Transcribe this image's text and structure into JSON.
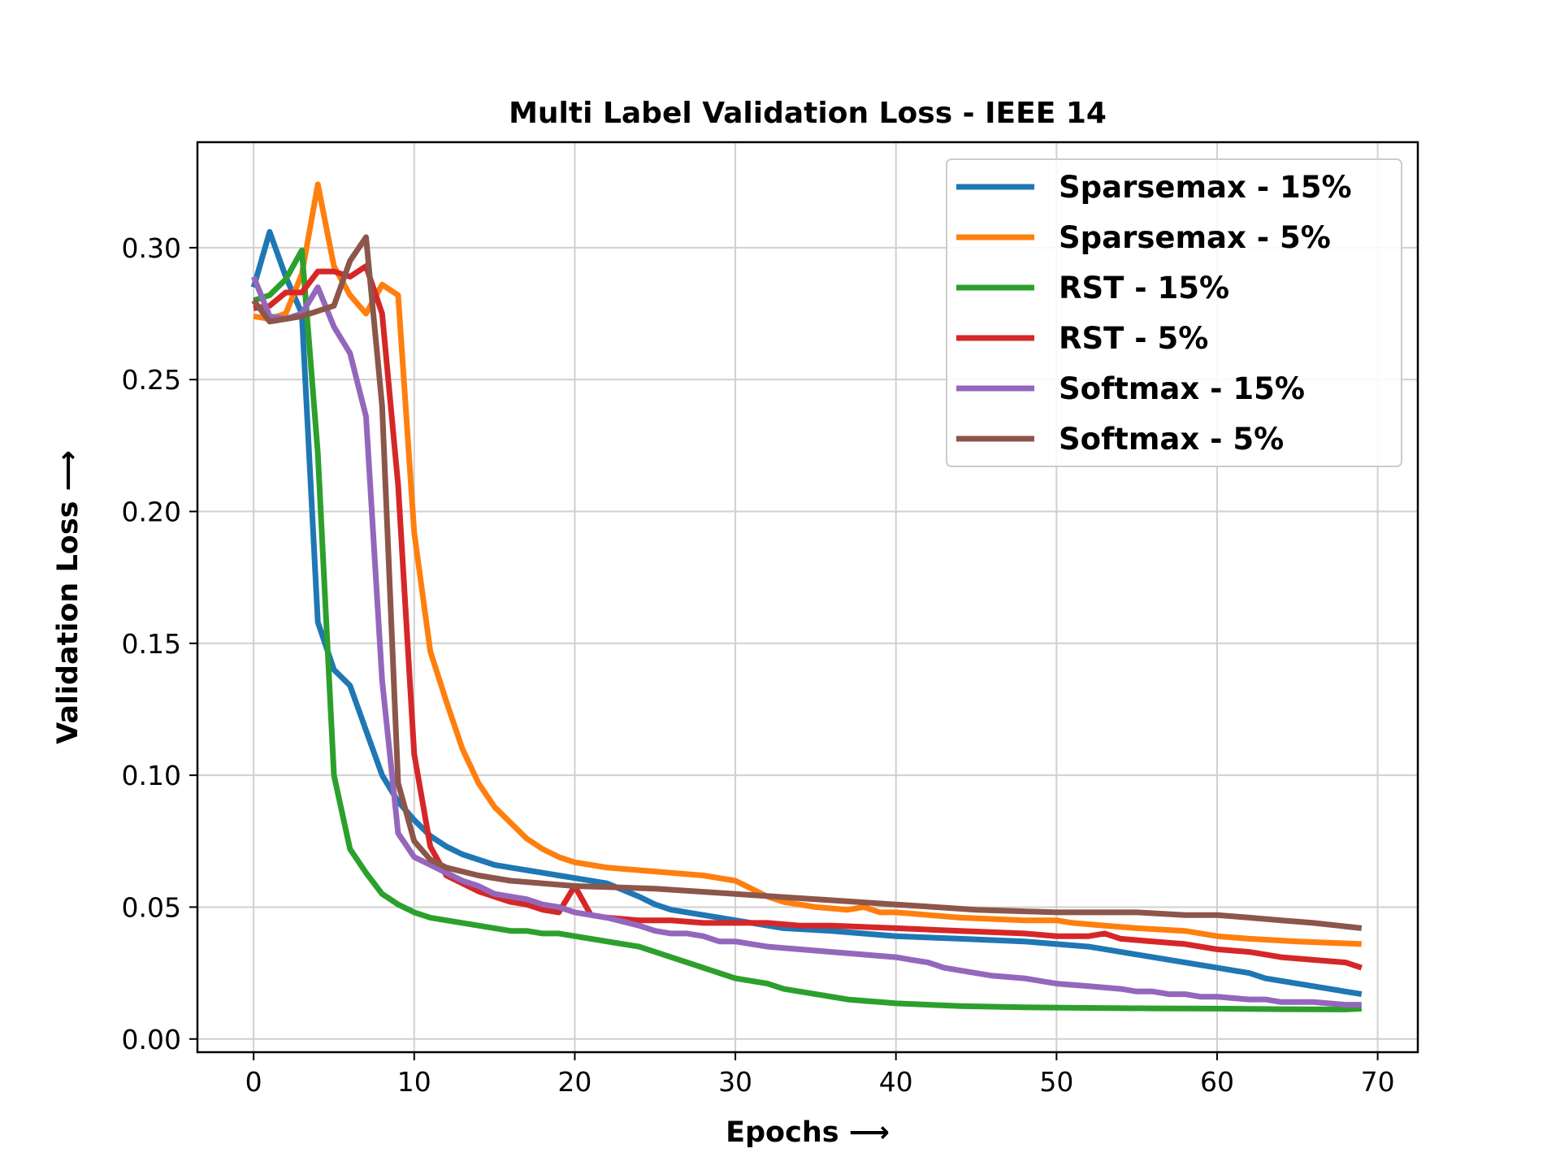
{
  "chart_data": {
    "type": "line",
    "title": "Multi Label Validation Loss - IEEE 14",
    "xlabel": "Epochs ⟶",
    "ylabel": "Validation Loss ⟶",
    "xlim": [
      -3.5,
      72.5
    ],
    "ylim": [
      -0.005,
      0.34
    ],
    "xticks": [
      0,
      10,
      20,
      30,
      40,
      50,
      60,
      70
    ],
    "xtick_labels": [
      "0",
      "10",
      "20",
      "30",
      "40",
      "50",
      "60",
      "70"
    ],
    "yticks": [
      0.0,
      0.05,
      0.1,
      0.15,
      0.2,
      0.25,
      0.3
    ],
    "ytick_labels": [
      "0.00",
      "0.05",
      "0.10",
      "0.15",
      "0.20",
      "0.25",
      "0.30"
    ],
    "grid": true,
    "legend_position": "top-right",
    "series": [
      {
        "name": "Sparsemax - 15%",
        "color": "#1f77b4",
        "x": [
          0,
          1,
          2,
          3,
          4,
          5,
          6,
          7,
          8,
          9,
          10,
          11,
          12,
          13,
          14,
          15,
          16,
          17,
          18,
          19,
          20,
          22,
          24,
          25,
          26,
          28,
          30,
          33,
          36,
          40,
          44,
          48,
          52,
          54,
          56,
          58,
          60,
          62,
          63,
          65,
          67,
          69
        ],
        "y": [
          0.285,
          0.306,
          0.289,
          0.275,
          0.158,
          0.14,
          0.134,
          0.117,
          0.1,
          0.09,
          0.083,
          0.077,
          0.073,
          0.07,
          0.068,
          0.066,
          0.065,
          0.064,
          0.063,
          0.062,
          0.061,
          0.059,
          0.054,
          0.051,
          0.049,
          0.047,
          0.045,
          0.042,
          0.041,
          0.039,
          0.038,
          0.037,
          0.035,
          0.033,
          0.031,
          0.029,
          0.027,
          0.025,
          0.023,
          0.021,
          0.019,
          0.017
        ]
      },
      {
        "name": "Sparsemax - 5%",
        "color": "#ff7f0e",
        "x": [
          0,
          1,
          2,
          3,
          4,
          5,
          6,
          7,
          8,
          9,
          10,
          11,
          12,
          13,
          14,
          15,
          16,
          17,
          18,
          19,
          20,
          21,
          22,
          24,
          26,
          28,
          30,
          31,
          32,
          33,
          35,
          37,
          38,
          39,
          40,
          44,
          48,
          50,
          51,
          53,
          55,
          58,
          60,
          62,
          65,
          69
        ],
        "y": [
          0.274,
          0.273,
          0.275,
          0.29,
          0.324,
          0.293,
          0.282,
          0.275,
          0.286,
          0.282,
          0.192,
          0.147,
          0.128,
          0.11,
          0.097,
          0.088,
          0.082,
          0.076,
          0.072,
          0.069,
          0.067,
          0.066,
          0.065,
          0.064,
          0.063,
          0.062,
          0.06,
          0.057,
          0.054,
          0.052,
          0.05,
          0.049,
          0.05,
          0.048,
          0.048,
          0.046,
          0.045,
          0.045,
          0.044,
          0.043,
          0.042,
          0.041,
          0.039,
          0.038,
          0.037,
          0.036
        ]
      },
      {
        "name": "RST - 15%",
        "color": "#2ca02c",
        "x": [
          0,
          1,
          2,
          3,
          4,
          5,
          6,
          7,
          8,
          9,
          10,
          11,
          12,
          13,
          14,
          15,
          16,
          17,
          18,
          19,
          20,
          21,
          22,
          23,
          24,
          25,
          26,
          27,
          28,
          29,
          30,
          31,
          32,
          33,
          34,
          35,
          36,
          37,
          38,
          39,
          40,
          44,
          48,
          52,
          56,
          60,
          64,
          68,
          69
        ],
        "y": [
          0.28,
          0.282,
          0.288,
          0.299,
          0.222,
          0.1,
          0.072,
          0.063,
          0.055,
          0.051,
          0.048,
          0.046,
          0.045,
          0.044,
          0.043,
          0.042,
          0.041,
          0.041,
          0.04,
          0.04,
          0.039,
          0.038,
          0.037,
          0.036,
          0.035,
          0.033,
          0.031,
          0.029,
          0.027,
          0.025,
          0.023,
          0.022,
          0.021,
          0.019,
          0.018,
          0.017,
          0.016,
          0.015,
          0.0145,
          0.014,
          0.0135,
          0.0125,
          0.012,
          0.0118,
          0.0116,
          0.0115,
          0.0113,
          0.0112,
          0.0115
        ]
      },
      {
        "name": "RST - 5%",
        "color": "#d62728",
        "x": [
          0,
          1,
          2,
          3,
          4,
          5,
          6,
          7,
          8,
          9,
          10,
          11,
          12,
          13,
          14,
          15,
          16,
          17,
          18,
          19,
          20,
          21,
          22,
          24,
          26,
          28,
          30,
          32,
          34,
          36,
          40,
          44,
          48,
          50,
          52,
          53,
          54,
          56,
          58,
          60,
          62,
          64,
          66,
          68,
          69
        ],
        "y": [
          0.277,
          0.278,
          0.283,
          0.283,
          0.291,
          0.291,
          0.289,
          0.293,
          0.275,
          0.21,
          0.108,
          0.073,
          0.062,
          0.059,
          0.056,
          0.054,
          0.052,
          0.051,
          0.049,
          0.048,
          0.058,
          0.047,
          0.046,
          0.045,
          0.045,
          0.044,
          0.044,
          0.044,
          0.043,
          0.043,
          0.042,
          0.041,
          0.04,
          0.039,
          0.039,
          0.04,
          0.038,
          0.037,
          0.036,
          0.034,
          0.033,
          0.031,
          0.03,
          0.029,
          0.027
        ]
      },
      {
        "name": "Softmax - 15%",
        "color": "#9467bd",
        "x": [
          0,
          1,
          2,
          3,
          4,
          5,
          6,
          7,
          8,
          9,
          10,
          11,
          12,
          13,
          14,
          15,
          16,
          17,
          18,
          19,
          20,
          22,
          24,
          25,
          26,
          27,
          28,
          29,
          30,
          31,
          32,
          34,
          36,
          38,
          40,
          41,
          42,
          43,
          44,
          46,
          48,
          50,
          52,
          54,
          55,
          56,
          57,
          58,
          59,
          60,
          62,
          63,
          64,
          66,
          68,
          69
        ],
        "y": [
          0.289,
          0.274,
          0.273,
          0.275,
          0.285,
          0.27,
          0.26,
          0.236,
          0.136,
          0.078,
          0.069,
          0.066,
          0.063,
          0.06,
          0.058,
          0.055,
          0.054,
          0.053,
          0.051,
          0.05,
          0.048,
          0.046,
          0.043,
          0.041,
          0.04,
          0.04,
          0.039,
          0.037,
          0.037,
          0.036,
          0.035,
          0.034,
          0.033,
          0.032,
          0.031,
          0.03,
          0.029,
          0.027,
          0.026,
          0.024,
          0.023,
          0.021,
          0.02,
          0.019,
          0.018,
          0.018,
          0.017,
          0.017,
          0.016,
          0.016,
          0.015,
          0.015,
          0.014,
          0.014,
          0.013,
          0.013
        ]
      },
      {
        "name": "Softmax - 5%",
        "color": "#8c564b",
        "x": [
          0,
          1,
          2,
          3,
          4,
          5,
          6,
          7,
          8,
          9,
          10,
          11,
          12,
          14,
          16,
          18,
          20,
          25,
          30,
          35,
          40,
          45,
          50,
          55,
          58,
          60,
          62,
          64,
          66,
          69
        ],
        "y": [
          0.28,
          0.272,
          0.273,
          0.274,
          0.276,
          0.278,
          0.295,
          0.304,
          0.24,
          0.097,
          0.075,
          0.068,
          0.065,
          0.062,
          0.06,
          0.059,
          0.058,
          0.057,
          0.055,
          0.053,
          0.051,
          0.049,
          0.048,
          0.048,
          0.047,
          0.047,
          0.046,
          0.045,
          0.044,
          0.042
        ]
      }
    ]
  }
}
